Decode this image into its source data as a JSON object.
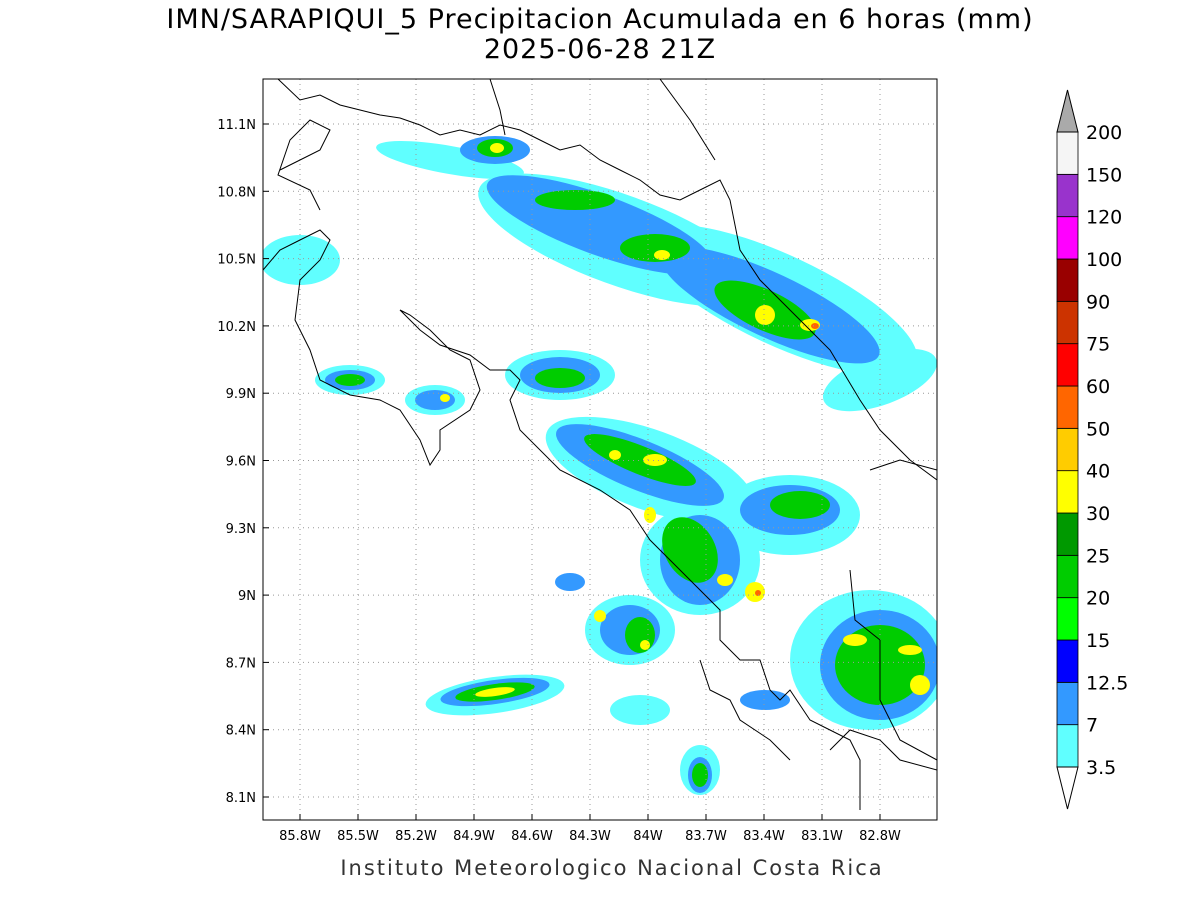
{
  "title": "IMN/SARAPIQUI_5 Precipitacion Acumulada en 6 horas (mm)",
  "subtitle": "2025-06-28 21Z",
  "lat_labels": [
    "11.1N",
    "10.8N",
    "10.5N",
    "10.2N",
    "9.9N",
    "9.6N",
    "9.3N",
    "9N",
    "8.7N",
    "8.4N",
    "8.1N"
  ],
  "lon_labels": [
    "85.8W",
    "85.5W",
    "85.2W",
    "84.9W",
    "84.6W",
    "84.3W",
    "84W",
    "83.7W",
    "83.4W",
    "83.1W",
    "82.8W"
  ],
  "footer": "Instituto Meteorologico Nacional Costa Rica",
  "colorbar": {
    "levels": [
      3.5,
      7,
      12.5,
      15,
      20,
      25,
      30,
      40,
      50,
      60,
      75,
      90,
      100,
      120,
      150,
      200
    ],
    "colors": [
      "#60ffff",
      "#3399ff",
      "#0000ff",
      "#00ff00",
      "#00cc00",
      "#009900",
      "#ffff00",
      "#ffcc00",
      "#ff6600",
      "#ff0000",
      "#cc3300",
      "#990000",
      "#ff00ff",
      "#9933cc",
      "#f5f5f5"
    ],
    "under_color": "#ffffff",
    "over_color": "#aaaaaa"
  }
}
